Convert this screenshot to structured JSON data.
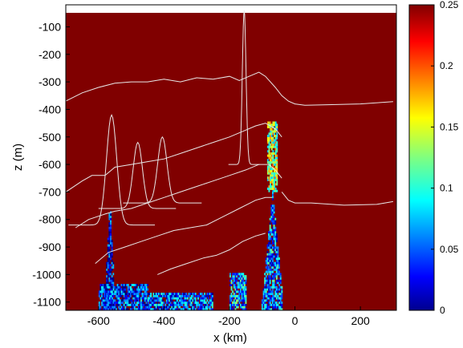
{
  "chart_data": {
    "type": "heatmap",
    "title": "",
    "xlabel": "x (km)",
    "ylabel": "z (m)",
    "xlim": [
      -700,
      310
    ],
    "ylim": [
      -1130,
      -20
    ],
    "x_ticks": [
      -600,
      -400,
      -200,
      0,
      200
    ],
    "y_ticks": [
      -100,
      -200,
      -300,
      -400,
      -500,
      -600,
      -700,
      -800,
      -900,
      -1000,
      -1100
    ],
    "colorbar": {
      "range": [
        0,
        0.25
      ],
      "ticks": [
        0,
        0.05,
        0.1,
        0.15,
        0.2,
        0.25
      ],
      "colormap": "jet"
    },
    "background_value": 0.25,
    "grid": false,
    "contour_color": "#e8e8e8",
    "contours": [
      {
        "name": "",
        "points": [
          [
            -700,
            -370
          ],
          [
            -650,
            -340
          ],
          [
            -600,
            -320
          ],
          [
            -550,
            -305
          ],
          [
            -500,
            -300
          ],
          [
            -450,
            -300
          ],
          [
            -400,
            -290
          ],
          [
            -350,
            -300
          ],
          [
            -300,
            -285
          ],
          [
            -250,
            -290
          ],
          [
            -200,
            -280
          ],
          [
            -170,
            -295
          ],
          [
            -140,
            -280
          ],
          [
            -110,
            -265
          ],
          [
            -90,
            -280
          ],
          [
            -60,
            -320
          ],
          [
            -40,
            -350
          ],
          [
            -20,
            -370
          ],
          [
            0,
            -380
          ],
          [
            30,
            -385
          ],
          [
            100,
            -383
          ],
          [
            200,
            -380
          ],
          [
            300,
            -372
          ]
        ]
      },
      {
        "name": "",
        "points": [
          [
            -700,
            -700
          ],
          [
            -650,
            -660
          ],
          [
            -620,
            -640
          ],
          [
            -580,
            -640
          ],
          [
            -550,
            -610
          ],
          [
            -500,
            -600
          ],
          [
            -450,
            -590
          ],
          [
            -400,
            -580
          ],
          [
            -350,
            -560
          ],
          [
            -300,
            -540
          ],
          [
            -250,
            -520
          ],
          [
            -200,
            -500
          ],
          [
            -160,
            -480
          ],
          [
            -120,
            -460
          ],
          [
            -90,
            -450
          ],
          [
            -60,
            -470
          ],
          [
            -40,
            -500
          ]
        ]
      },
      {
        "name": "",
        "points": [
          [
            -40,
            -700
          ],
          [
            -20,
            -730
          ],
          [
            0,
            -740
          ],
          [
            50,
            -740
          ],
          [
            150,
            -748
          ],
          [
            250,
            -745
          ],
          [
            300,
            -735
          ]
        ]
      },
      {
        "name": "",
        "points": [
          [
            -670,
            -830
          ],
          [
            -630,
            -800
          ],
          [
            -580,
            -780
          ],
          [
            -550,
            -770
          ],
          [
            -500,
            -760
          ],
          [
            -450,
            -740
          ],
          [
            -400,
            -720
          ],
          [
            -350,
            -700
          ],
          [
            -300,
            -680
          ],
          [
            -250,
            -660
          ],
          [
            -200,
            -640
          ],
          [
            -150,
            -620
          ],
          [
            -110,
            -600
          ],
          [
            -80,
            -600
          ],
          [
            -60,
            -620
          ],
          [
            -40,
            -650
          ]
        ]
      },
      {
        "name": "",
        "points": [
          [
            -610,
            -960
          ],
          [
            -570,
            -920
          ],
          [
            -520,
            -900
          ],
          [
            -470,
            -880
          ],
          [
            -420,
            -860
          ],
          [
            -370,
            -840
          ],
          [
            -320,
            -830
          ],
          [
            -270,
            -820
          ],
          [
            -220,
            -790
          ],
          [
            -170,
            -760
          ],
          [
            -120,
            -730
          ],
          [
            -90,
            -720
          ],
          [
            -70,
            -720
          ]
        ]
      },
      {
        "name": "",
        "points": [
          [
            -420,
            -1000
          ],
          [
            -380,
            -980
          ],
          [
            -330,
            -960
          ],
          [
            -280,
            -940
          ],
          [
            -240,
            -930
          ],
          [
            -200,
            -910
          ],
          [
            -160,
            -880
          ],
          [
            -120,
            -860
          ],
          [
            -90,
            -850
          ]
        ]
      }
    ],
    "peaked_contours": [
      {
        "name": "",
        "x0": -560,
        "width": 22,
        "base": -820,
        "top": -420,
        "z_bottom": -1130
      },
      {
        "name": "",
        "x0": -480,
        "width": 20,
        "base": -760,
        "top": -520,
        "z_bottom": -1130
      },
      {
        "name": "",
        "x0": -405,
        "width": 20,
        "base": -740,
        "top": -500,
        "z_bottom": -1130
      },
      {
        "name": "",
        "x0": -155,
        "width": 8,
        "base": -600,
        "top": -40,
        "z_bottom": -1130
      }
    ],
    "low_regions": [
      {
        "name": "",
        "x_range": [
          -585,
          -550
        ],
        "z_range": [
          -1130,
          -730
        ],
        "shape": "peak",
        "peak_x": -567,
        "value": 0.01
      },
      {
        "name": "",
        "x_range": [
          -600,
          -450
        ],
        "z_range": [
          -1130,
          -1040
        ],
        "shape": "band",
        "value": 0.03
      },
      {
        "name": "",
        "x_range": [
          -450,
          -250
        ],
        "z_range": [
          -1130,
          -1070
        ],
        "shape": "band",
        "value": 0.04
      },
      {
        "name": "",
        "x_range": [
          -200,
          -150
        ],
        "z_range": [
          -1130,
          -1000
        ],
        "shape": "band",
        "value": 0.06
      },
      {
        "name": "",
        "x_range": [
          -110,
          -40
        ],
        "z_range": [
          -1130,
          -700
        ],
        "shape": "peak",
        "peak_x": -70,
        "value": 0.05
      },
      {
        "name": "",
        "x_range": [
          -85,
          -55
        ],
        "z_range": [
          -700,
          -450
        ],
        "shape": "column",
        "value": 0.12
      }
    ]
  }
}
